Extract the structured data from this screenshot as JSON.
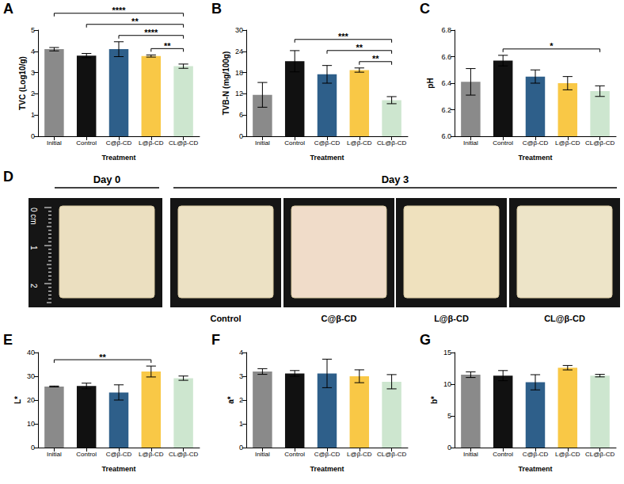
{
  "chart_data": [
    {
      "panel": "A",
      "type": "bar",
      "x_label": "Treatment",
      "y_label": "TVC (Log10/g)",
      "categories": [
        "Initial",
        "Control",
        "C@β-CD",
        "L@β-CD",
        "CL@β-CD"
      ],
      "values": [
        4.1,
        3.8,
        4.1,
        3.78,
        3.3
      ],
      "errors": [
        0.08,
        0.1,
        0.35,
        0.05,
        0.1
      ],
      "colors": [
        "#8a8a8a",
        "#111111",
        "#2e5f8a",
        "#f9c846",
        "#cde6cf"
      ],
      "ylim": [
        0,
        5
      ],
      "yticks": [
        0,
        1,
        2,
        3,
        4,
        5
      ],
      "grid": false,
      "comparisons": [
        {
          "from": "Initial",
          "to": "CL@β-CD",
          "label": "****"
        },
        {
          "from": "Control",
          "to": "CL@β-CD",
          "label": "**"
        },
        {
          "from": "C@β-CD",
          "to": "CL@β-CD",
          "label": "****"
        },
        {
          "from": "L@β-CD",
          "to": "CL@β-CD",
          "label": "**"
        }
      ]
    },
    {
      "panel": "B",
      "type": "bar",
      "x_label": "Treatment",
      "y_label": "TVB-N (mg/100g)",
      "categories": [
        "Initial",
        "Control",
        "C@β-CD",
        "L@β-CD",
        "CL@β-CD"
      ],
      "values": [
        11.7,
        21.2,
        17.5,
        18.7,
        10.2
      ],
      "errors": [
        3.5,
        3.0,
        2.5,
        0.6,
        1.0
      ],
      "colors": [
        "#8a8a8a",
        "#111111",
        "#2e5f8a",
        "#f9c846",
        "#cde6cf"
      ],
      "ylim": [
        0,
        30
      ],
      "yticks": [
        0,
        6,
        12,
        18,
        24,
        30
      ],
      "grid": false,
      "comparisons": [
        {
          "from": "Control",
          "to": "CL@β-CD",
          "label": "***"
        },
        {
          "from": "C@β-CD",
          "to": "CL@β-CD",
          "label": "**"
        },
        {
          "from": "L@β-CD",
          "to": "CL@β-CD",
          "label": "**"
        }
      ]
    },
    {
      "panel": "C",
      "type": "bar",
      "x_label": "Treatment",
      "y_label": "pH",
      "categories": [
        "Initial",
        "Control",
        "C@β-CD",
        "L@β-CD",
        "CL@β-CD"
      ],
      "values": [
        6.41,
        6.57,
        6.45,
        6.4,
        6.34
      ],
      "errors": [
        0.1,
        0.04,
        0.05,
        0.05,
        0.04
      ],
      "colors": [
        "#8a8a8a",
        "#111111",
        "#2e5f8a",
        "#f9c846",
        "#cde6cf"
      ],
      "ylim": [
        6,
        6.8
      ],
      "yticks": [
        {
          "value": 6,
          "label": "6.0"
        },
        6.2,
        6.4,
        6.6,
        6.8
      ],
      "grid": false,
      "comparisons": [
        {
          "from": "Control",
          "to": "CL@β-CD",
          "label": "*"
        }
      ]
    },
    {
      "panel": "E",
      "type": "bar",
      "x_label": "Treatment",
      "y_label": "L*",
      "categories": [
        "Initial",
        "Control",
        "C@β-CD",
        "L@β-CD",
        "CL@β-CD"
      ],
      "values": [
        25.7,
        25.9,
        23.2,
        32.0,
        29.2
      ],
      "errors": [
        0.2,
        1.2,
        3.2,
        2.3,
        0.9
      ],
      "colors": [
        "#8a8a8a",
        "#111111",
        "#2e5f8a",
        "#f9c846",
        "#cde6cf"
      ],
      "ylim": [
        0,
        40
      ],
      "yticks": [
        0,
        10,
        20,
        30,
        40
      ],
      "grid": false,
      "comparisons": [
        {
          "from": "Initial",
          "to": "L@β-CD",
          "label": "**"
        }
      ]
    },
    {
      "panel": "F",
      "type": "bar",
      "x_label": "Treatment",
      "y_label": "a*",
      "categories": [
        "Initial",
        "Control",
        "C@β-CD",
        "L@β-CD",
        "CL@β-CD"
      ],
      "values": [
        3.2,
        3.12,
        3.12,
        3.0,
        2.77
      ],
      "errors": [
        0.12,
        0.12,
        0.6,
        0.27,
        0.3
      ],
      "colors": [
        "#8a8a8a",
        "#111111",
        "#2e5f8a",
        "#f9c846",
        "#cde6cf"
      ],
      "ylim": [
        0,
        4
      ],
      "yticks": [
        0,
        1,
        2,
        3,
        4
      ],
      "grid": false,
      "comparisons": []
    },
    {
      "panel": "G",
      "type": "bar",
      "x_label": "Treatment",
      "y_label": "b*",
      "categories": [
        "Initial",
        "Control",
        "C@β-CD",
        "L@β-CD",
        "CL@β-CD"
      ],
      "values": [
        11.5,
        11.35,
        10.3,
        12.6,
        11.35
      ],
      "errors": [
        0.45,
        0.8,
        1.2,
        0.35,
        0.2
      ],
      "colors": [
        "#8a8a8a",
        "#111111",
        "#2e5f8a",
        "#f9c846",
        "#cde6cf"
      ],
      "ylim": [
        0,
        15
      ],
      "yticks": [
        0,
        5,
        10,
        15
      ],
      "grid": false,
      "comparisons": []
    }
  ],
  "panel_d": {
    "panel": "D",
    "groups": [
      {
        "title": "Day 0",
        "photos": 1
      },
      {
        "title": "Day 3",
        "photos": 4,
        "labels": [
          "Control",
          "C@β-CD",
          "L@β-CD",
          "CL@β-CD"
        ]
      }
    ],
    "ruler": [
      "0 cm",
      "1",
      "2"
    ]
  }
}
